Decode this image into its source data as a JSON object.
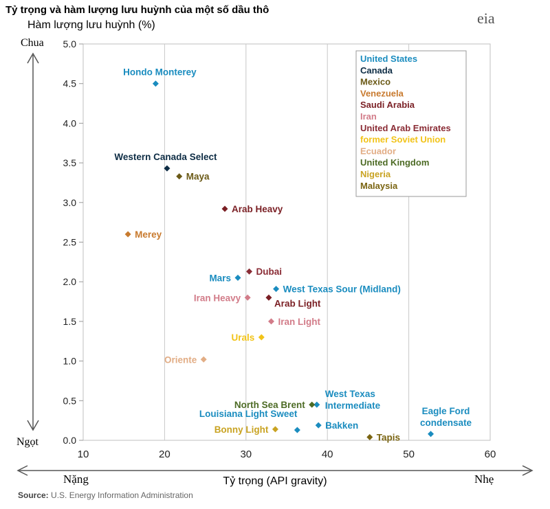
{
  "title": "Tỷ trọng và hàm lượng lưu huỳnh của một số dầu thô",
  "logo_text": "eia",
  "source_label": "Source:",
  "source_text": " U.S. Energy Information Administration",
  "chart_data": {
    "type": "scatter",
    "title": "Tỷ trọng và hàm lượng lưu huỳnh của một số dầu thô",
    "xlabel": "Tỷ trọng (API gravity)",
    "ylabel": "Hàm lượng lưu huỳnh (%)",
    "xlim": [
      10,
      60
    ],
    "ylim": [
      0,
      5
    ],
    "xticks": [
      "10",
      "20",
      "30",
      "40",
      "50",
      "60"
    ],
    "yticks": [
      "0.0",
      "0.5",
      "1.0",
      "1.5",
      "2.0",
      "2.5",
      "3.0",
      "3.5",
      "4.0",
      "4.5",
      "5.0"
    ],
    "grid": "vertical",
    "legend_position": "top-right",
    "y_arrow_top": "Chua",
    "y_arrow_bottom": "Ngọt",
    "x_arrow_left": "Nặng",
    "x_arrow_right": "Nhẹ",
    "series": [
      {
        "name": "United States",
        "color": "#1a8cbf",
        "points": [
          {
            "label": "Hondo Monterey",
            "x": 18.9,
            "y": 4.5,
            "lx": "center"
          },
          {
            "label": "Mars",
            "x": 29,
            "y": 2.05,
            "lx": "left"
          },
          {
            "label": "West Texas Sour (Midland)",
            "x": 33.7,
            "y": 1.91,
            "lx": "right"
          },
          {
            "label": "West Texas Intermediate",
            "x": 38.7,
            "y": 0.45,
            "lx": "right2"
          },
          {
            "label": "Louisiana Light Sweet",
            "x": 36.3,
            "y": 0.13,
            "lx": "above-left"
          },
          {
            "label": "Bakken",
            "x": 38.9,
            "y": 0.19,
            "lx": "right"
          },
          {
            "label": "Eagle Ford condensate",
            "x": 52.7,
            "y": 0.08,
            "lx": "above2"
          }
        ]
      },
      {
        "name": "Canada",
        "color": "#0d2c44",
        "points": [
          {
            "label": "Western Canada Select",
            "x": 20.3,
            "y": 3.43,
            "lx": "above"
          }
        ]
      },
      {
        "name": "Mexico",
        "color": "#6b5a17",
        "points": [
          {
            "label": "Maya",
            "x": 21.8,
            "y": 3.33,
            "lx": "right"
          }
        ]
      },
      {
        "name": "Venezuela",
        "color": "#c87a2e",
        "points": [
          {
            "label": "Merey",
            "x": 15.5,
            "y": 2.6,
            "lx": "right"
          }
        ]
      },
      {
        "name": "Saudi Arabia",
        "color": "#7a1f24",
        "points": [
          {
            "label": "Arab Heavy",
            "x": 27.4,
            "y": 2.92,
            "lx": "right"
          },
          {
            "label": "Arab Light",
            "x": 32.8,
            "y": 1.8,
            "lx": "right-below"
          }
        ]
      },
      {
        "name": "Iran",
        "color": "#d27c89",
        "points": [
          {
            "label": "Iran Heavy",
            "x": 30.2,
            "y": 1.8,
            "lx": "left"
          },
          {
            "label": "Iran Light",
            "x": 33.1,
            "y": 1.5,
            "lx": "right"
          }
        ]
      },
      {
        "name": "United Arab Emirates",
        "color": "#8a2c35",
        "points": [
          {
            "label": "Dubai",
            "x": 30.4,
            "y": 2.13,
            "lx": "right"
          }
        ]
      },
      {
        "name": "former Soviet Union",
        "color": "#f2c318",
        "points": [
          {
            "label": "Urals",
            "x": 31.9,
            "y": 1.3,
            "lx": "left"
          }
        ]
      },
      {
        "name": "Ecuador",
        "color": "#e2ad85",
        "points": [
          {
            "label": "Oriente",
            "x": 24.8,
            "y": 1.02,
            "lx": "left"
          }
        ]
      },
      {
        "name": "United Kingdom",
        "color": "#4d6b25",
        "points": [
          {
            "label": "North Sea Brent",
            "x": 38.1,
            "y": 0.45,
            "lx": "left"
          }
        ]
      },
      {
        "name": "Nigeria",
        "color": "#c9a322",
        "points": [
          {
            "label": "Bonny Light",
            "x": 33.6,
            "y": 0.14,
            "lx": "left"
          }
        ]
      },
      {
        "name": "Malaysia",
        "color": "#7a6411",
        "points": [
          {
            "label": "Tapis",
            "x": 45.2,
            "y": 0.04,
            "lx": "right"
          }
        ]
      }
    ]
  }
}
